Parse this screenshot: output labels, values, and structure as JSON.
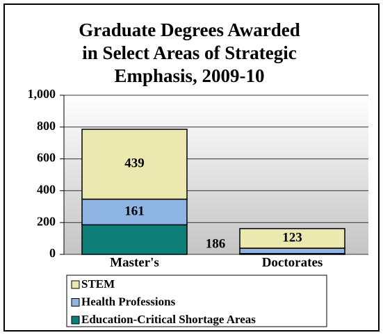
{
  "chart_data": {
    "type": "bar",
    "stacked": true,
    "title": "Graduate Degrees Awarded in Select Areas of Strategic Emphasis, 2009-10",
    "categories": [
      "Master's",
      "Doctorates"
    ],
    "series": [
      {
        "name": "Education-Critical Shortage Areas",
        "color": "#0e7f78",
        "values": [
          186,
          5
        ]
      },
      {
        "name": "Health Professions",
        "color": "#8db4e3",
        "values": [
          161,
          34
        ]
      },
      {
        "name": "STEM",
        "color": "#ebe9b0",
        "values": [
          439,
          123
        ]
      }
    ],
    "ylim": [
      0,
      1000
    ],
    "yticks": [
      0,
      200,
      400,
      600,
      800,
      {
        "value": 1000,
        "label": "1,000"
      }
    ],
    "grid": true,
    "legend": "bottom"
  }
}
